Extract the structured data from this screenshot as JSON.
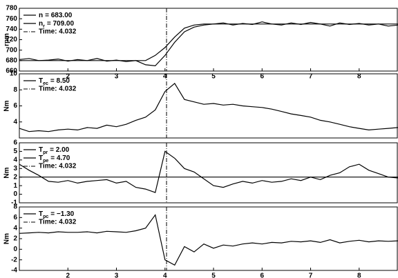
{
  "chart_data": [
    {
      "type": "line",
      "ylabel": "rpm",
      "xlim": [
        1,
        8.8
      ],
      "ylim": [
        660,
        780
      ],
      "xticks": [
        2,
        3,
        4,
        5,
        6,
        7,
        8
      ],
      "yticks": [
        660,
        680,
        700,
        720,
        740,
        760,
        780
      ],
      "x": [
        1.0,
        1.2,
        1.4,
        1.6,
        1.8,
        2.0,
        2.2,
        2.4,
        2.6,
        2.8,
        3.0,
        3.2,
        3.4,
        3.6,
        3.8,
        4.0,
        4.2,
        4.4,
        4.6,
        4.8,
        5.0,
        5.2,
        5.4,
        5.6,
        5.8,
        6.0,
        6.2,
        6.4,
        6.6,
        6.8,
        7.0,
        7.2,
        7.4,
        7.6,
        7.8,
        8.0,
        8.2,
        8.4,
        8.6,
        8.8
      ],
      "series": [
        {
          "name": "n",
          "label": "= 683.00",
          "color": "#000000",
          "values": [
            682,
            684,
            680,
            681,
            683,
            679,
            682,
            680,
            684,
            679,
            681,
            678,
            680,
            672,
            670,
            690,
            715,
            735,
            744,
            748,
            750,
            752,
            748,
            751,
            749,
            754,
            750,
            748,
            752,
            749,
            753,
            750,
            746,
            752,
            749,
            751,
            748,
            750,
            746,
            748
          ]
        },
        {
          "name": "n",
          "subscript": "r",
          "label": "= 709.00",
          "color": "#000000",
          "values": [
            680,
            680,
            680,
            680,
            680,
            680,
            680,
            680,
            680,
            680,
            680,
            680,
            680,
            680,
            690,
            705,
            725,
            742,
            748,
            750,
            750,
            750,
            750,
            750,
            750,
            750,
            750,
            750,
            750,
            750,
            750,
            750,
            750,
            750,
            750,
            750,
            750,
            750,
            750,
            750
          ]
        }
      ],
      "marker": {
        "x": 4.032,
        "label": "Time: 4.032"
      }
    },
    {
      "type": "line",
      "ylabel": "Nm",
      "xlim": [
        1,
        8.8
      ],
      "ylim": [
        2,
        10
      ],
      "yticks": [
        4,
        6,
        8,
        10
      ],
      "x": [
        1.0,
        1.2,
        1.4,
        1.6,
        1.8,
        2.0,
        2.2,
        2.4,
        2.6,
        2.8,
        3.0,
        3.2,
        3.4,
        3.6,
        3.8,
        4.0,
        4.2,
        4.4,
        4.6,
        4.8,
        5.0,
        5.2,
        5.4,
        5.6,
        5.8,
        6.0,
        6.2,
        6.4,
        6.6,
        6.8,
        7.0,
        7.2,
        7.4,
        7.6,
        7.8,
        8.0,
        8.2,
        8.4,
        8.6,
        8.8
      ],
      "series": [
        {
          "name": "T",
          "subscript": "ec",
          "label": "= 8.50",
          "color": "#000000",
          "values": [
            3.2,
            2.8,
            2.9,
            2.8,
            3.0,
            3.1,
            3.0,
            3.3,
            3.2,
            3.6,
            3.4,
            3.7,
            4.2,
            4.6,
            5.5,
            7.8,
            8.8,
            6.8,
            6.5,
            6.2,
            6.3,
            6.1,
            6.2,
            6.0,
            5.9,
            5.8,
            5.6,
            5.3,
            5.0,
            4.8,
            4.6,
            4.2,
            4.0,
            3.7,
            3.4,
            3.2,
            3.0,
            3.1,
            3.2,
            3.3
          ]
        }
      ],
      "marker": {
        "x": 4.032,
        "label": "Time: 4.032"
      }
    },
    {
      "type": "line",
      "ylabel": "Nm",
      "xlim": [
        1,
        8.8
      ],
      "ylim": [
        -1,
        6
      ],
      "yticks": [
        -1,
        0,
        1,
        2,
        3,
        4,
        5,
        6
      ],
      "x": [
        1.0,
        1.2,
        1.4,
        1.6,
        1.8,
        2.0,
        2.2,
        2.4,
        2.6,
        2.8,
        3.0,
        3.2,
        3.4,
        3.6,
        3.8,
        4.0,
        4.2,
        4.4,
        4.6,
        4.8,
        5.0,
        5.2,
        5.4,
        5.6,
        5.8,
        6.0,
        6.2,
        6.4,
        6.6,
        6.8,
        7.0,
        7.2,
        7.4,
        7.6,
        7.8,
        8.0,
        8.2,
        8.4,
        8.6,
        8.8
      ],
      "series": [
        {
          "name": "T",
          "subscript": "pr",
          "label": "= 2.00",
          "color": "#000000",
          "values": [
            2,
            2,
            2,
            2,
            2,
            2,
            2,
            2,
            2,
            2,
            2,
            2,
            2,
            2,
            2,
            2,
            2,
            2,
            2,
            2,
            2,
            2,
            2,
            2,
            2,
            2,
            2,
            2,
            2,
            2,
            2,
            2,
            2,
            2,
            2,
            2,
            2,
            2,
            2,
            2
          ]
        },
        {
          "name": "T",
          "subscript": "pe",
          "label": "= 4.70",
          "color": "#000000",
          "values": [
            3.5,
            2.8,
            2.2,
            1.5,
            1.4,
            1.6,
            1.3,
            1.5,
            1.6,
            1.7,
            1.3,
            1.5,
            0.8,
            0.6,
            0.2,
            5.0,
            4.2,
            3.0,
            2.6,
            1.8,
            1.0,
            0.8,
            1.2,
            1.5,
            1.3,
            1.6,
            1.4,
            1.5,
            1.8,
            1.6,
            2.0,
            1.7,
            2.2,
            2.5,
            3.2,
            3.5,
            2.8,
            2.4,
            2.0,
            1.9
          ]
        }
      ],
      "marker": {
        "x": 4.032,
        "label": "Time: 4.032"
      }
    },
    {
      "type": "line",
      "ylabel": "Nm",
      "xlim": [
        1,
        8.8
      ],
      "ylim": [
        -4,
        8
      ],
      "xticks": [
        2,
        3,
        4,
        5,
        6,
        7,
        8
      ],
      "yticks": [
        -4,
        -2,
        0,
        2,
        4,
        6,
        8
      ],
      "x": [
        1.0,
        1.2,
        1.4,
        1.6,
        1.8,
        2.0,
        2.2,
        2.4,
        2.6,
        2.8,
        3.0,
        3.2,
        3.4,
        3.6,
        3.8,
        4.0,
        4.2,
        4.4,
        4.6,
        4.8,
        5.0,
        5.2,
        5.4,
        5.6,
        5.8,
        6.0,
        6.2,
        6.4,
        6.6,
        6.8,
        7.0,
        7.2,
        7.4,
        7.6,
        7.8,
        8.0,
        8.2,
        8.4,
        8.6,
        8.8
      ],
      "series": [
        {
          "name": "T",
          "subscript": "pc",
          "label": "= −1.30",
          "color": "#000000",
          "values": [
            3.0,
            3.1,
            3.2,
            3.1,
            3.3,
            3.2,
            3.2,
            3.3,
            3.1,
            3.4,
            3.3,
            3.2,
            3.5,
            4.0,
            6.5,
            -2.0,
            -3.0,
            0.5,
            -0.5,
            1.0,
            0.2,
            0.8,
            0.6,
            1.0,
            1.2,
            1.0,
            1.3,
            1.2,
            1.5,
            1.4,
            1.6,
            1.3,
            1.8,
            1.2,
            1.5,
            1.7,
            1.4,
            1.6,
            1.5,
            1.6
          ]
        }
      ],
      "marker": {
        "x": 4.032,
        "label": "Time: 4.032"
      }
    }
  ]
}
